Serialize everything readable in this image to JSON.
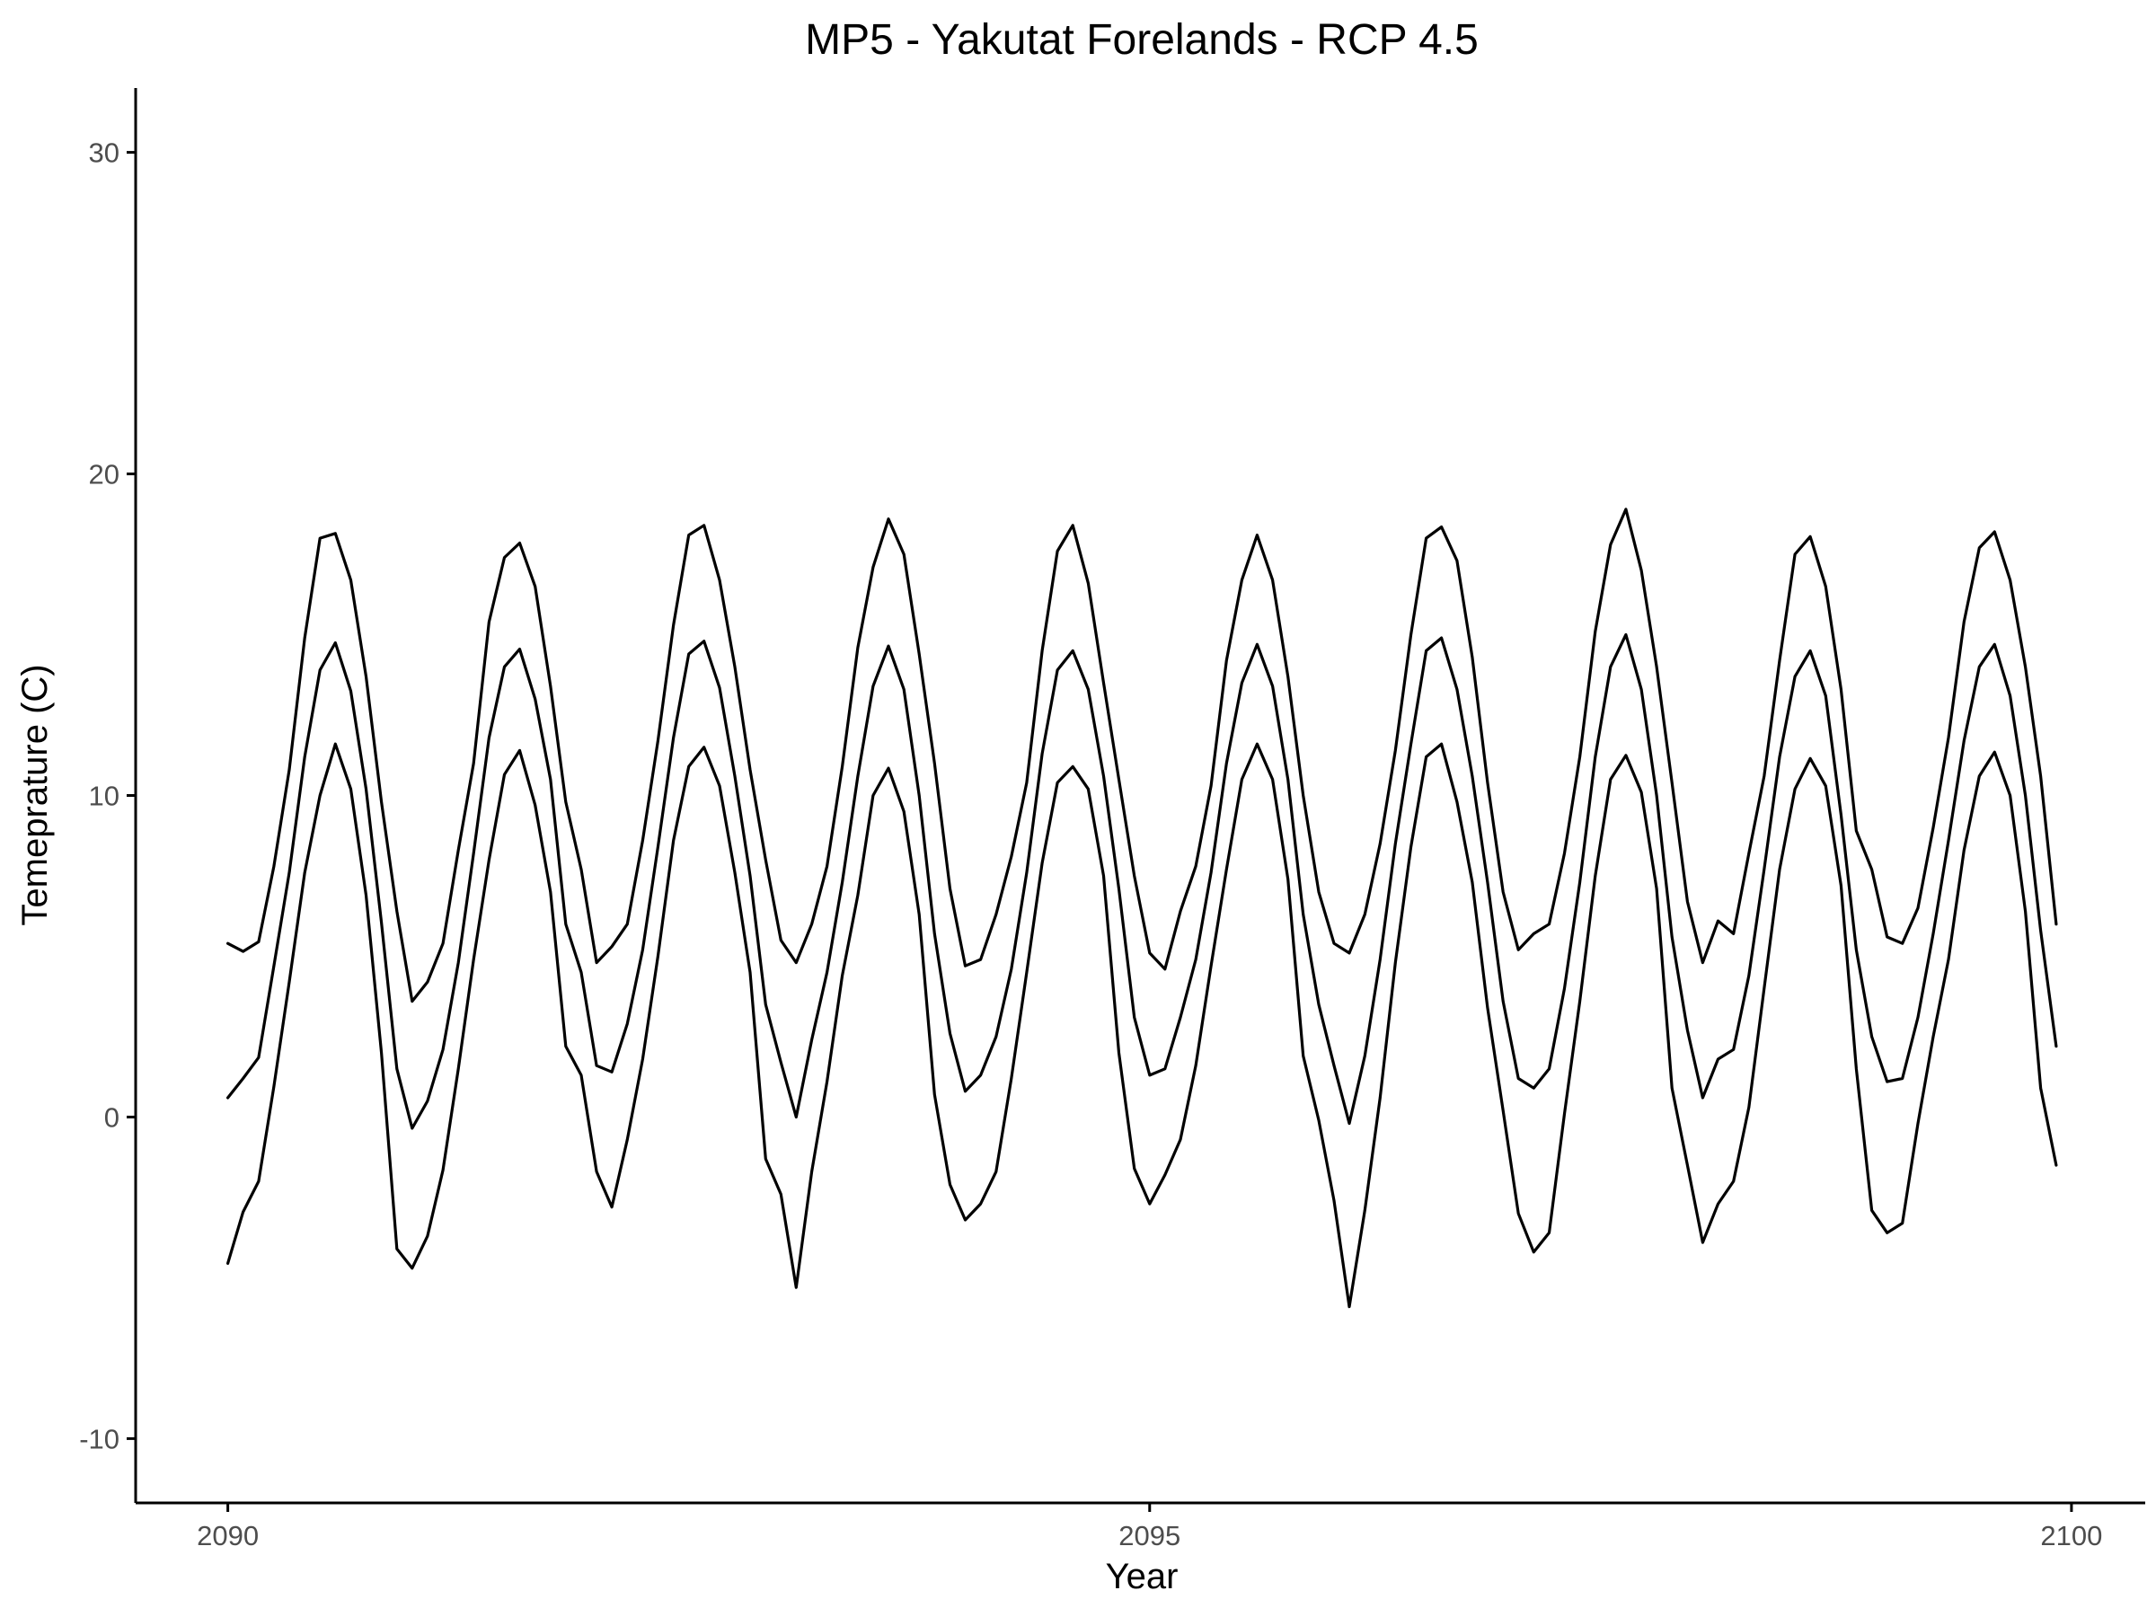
{
  "chart_data": {
    "type": "line",
    "title": "MP5 - Yakutat Forelands - RCP 4.5",
    "xlabel": "Year",
    "ylabel": "Temeprature (C)",
    "xlim": [
      2089.5,
      2100.4
    ],
    "ylim": [
      -12,
      32
    ],
    "x_ticks": [
      2090,
      2095,
      2100
    ],
    "y_ticks": [
      -10,
      0,
      10,
      20,
      30
    ],
    "grid": false,
    "legend": "none",
    "line_color": "#000000",
    "x": [
      2090.0,
      2090.083,
      2090.167,
      2090.25,
      2090.333,
      2090.417,
      2090.5,
      2090.583,
      2090.667,
      2090.75,
      2090.833,
      2090.917,
      2091.0,
      2091.083,
      2091.167,
      2091.25,
      2091.333,
      2091.417,
      2091.5,
      2091.583,
      2091.667,
      2091.75,
      2091.833,
      2091.917,
      2092.0,
      2092.083,
      2092.167,
      2092.25,
      2092.333,
      2092.417,
      2092.5,
      2092.583,
      2092.667,
      2092.75,
      2092.833,
      2092.917,
      2093.0,
      2093.083,
      2093.167,
      2093.25,
      2093.333,
      2093.417,
      2093.5,
      2093.583,
      2093.667,
      2093.75,
      2093.833,
      2093.917,
      2094.0,
      2094.083,
      2094.167,
      2094.25,
      2094.333,
      2094.417,
      2094.5,
      2094.583,
      2094.667,
      2094.75,
      2094.833,
      2094.917,
      2095.0,
      2095.083,
      2095.167,
      2095.25,
      2095.333,
      2095.417,
      2095.5,
      2095.583,
      2095.667,
      2095.75,
      2095.833,
      2095.917,
      2096.0,
      2096.083,
      2096.167,
      2096.25,
      2096.333,
      2096.417,
      2096.5,
      2096.583,
      2096.667,
      2096.75,
      2096.833,
      2096.917,
      2097.0,
      2097.083,
      2097.167,
      2097.25,
      2097.333,
      2097.417,
      2097.5,
      2097.583,
      2097.667,
      2097.75,
      2097.833,
      2097.917,
      2098.0,
      2098.083,
      2098.167,
      2098.25,
      2098.333,
      2098.417,
      2098.5,
      2098.583,
      2098.667,
      2098.75,
      2098.833,
      2098.917,
      2099.0,
      2099.083,
      2099.167,
      2099.25,
      2099.333,
      2099.417,
      2099.5,
      2099.583,
      2099.667,
      2099.75,
      2099.833,
      2099.917
    ],
    "series": [
      {
        "values": [
          5.4,
          5.15,
          5.45,
          7.8,
          10.8,
          14.9,
          18.0,
          18.15,
          16.7,
          13.7,
          9.8,
          6.4,
          3.6,
          4.2,
          5.4,
          8.3,
          11.0,
          15.4,
          17.4,
          17.85,
          16.5,
          13.4,
          9.8,
          7.7,
          4.8,
          5.3,
          6.0,
          8.6,
          11.7,
          15.3,
          18.1,
          18.4,
          16.7,
          14.0,
          10.8,
          8.0,
          5.5,
          4.8,
          6.0,
          7.8,
          10.9,
          14.6,
          17.1,
          18.6,
          17.5,
          14.4,
          11.0,
          7.1,
          4.7,
          4.9,
          6.3,
          8.1,
          10.4,
          14.5,
          17.6,
          18.4,
          16.6,
          13.5,
          10.5,
          7.5,
          5.1,
          4.6,
          6.4,
          7.8,
          10.3,
          14.2,
          16.7,
          18.1,
          16.7,
          13.7,
          10.0,
          7.0,
          5.4,
          5.1,
          6.3,
          8.5,
          11.4,
          15.0,
          18.0,
          18.35,
          17.3,
          14.3,
          10.4,
          7.0,
          5.2,
          5.7,
          6.0,
          8.2,
          11.2,
          15.1,
          17.8,
          18.9,
          17.0,
          14.0,
          10.4,
          6.7,
          4.8,
          6.1,
          5.7,
          8.2,
          10.6,
          14.2,
          17.5,
          18.05,
          16.5,
          13.3,
          8.9,
          7.7,
          5.6,
          5.4,
          6.5,
          9.0,
          11.8,
          15.4,
          17.7,
          18.2,
          16.7,
          14.0,
          10.6,
          6.0
        ]
      },
      {
        "values": [
          0.6,
          1.2,
          1.85,
          4.7,
          7.6,
          11.2,
          13.9,
          14.75,
          13.25,
          10.2,
          6.05,
          1.5,
          -0.35,
          0.5,
          2.1,
          4.8,
          8.2,
          11.8,
          14.0,
          14.55,
          13.0,
          10.5,
          6.0,
          4.5,
          1.6,
          1.4,
          2.9,
          5.2,
          8.4,
          11.8,
          14.4,
          14.8,
          13.35,
          10.6,
          7.5,
          3.5,
          1.7,
          0.0,
          2.4,
          4.5,
          7.3,
          10.6,
          13.4,
          14.65,
          13.3,
          10.0,
          5.7,
          2.6,
          0.8,
          1.3,
          2.5,
          4.6,
          7.6,
          11.3,
          13.9,
          14.5,
          13.3,
          10.6,
          7.1,
          3.1,
          1.3,
          1.5,
          3.1,
          4.9,
          7.6,
          11.0,
          13.5,
          14.7,
          13.4,
          10.5,
          6.3,
          3.5,
          1.6,
          -0.2,
          1.9,
          4.9,
          8.5,
          11.6,
          14.5,
          14.9,
          13.3,
          10.6,
          7.3,
          3.6,
          1.2,
          0.9,
          1.5,
          4.0,
          7.3,
          11.2,
          14.0,
          15.0,
          13.3,
          10.0,
          5.6,
          2.7,
          0.6,
          1.8,
          2.1,
          4.4,
          7.7,
          11.2,
          13.7,
          14.5,
          13.1,
          9.4,
          5.2,
          2.5,
          1.1,
          1.2,
          3.1,
          5.7,
          8.6,
          11.7,
          14.0,
          14.7,
          13.1,
          10.0,
          5.8,
          2.2
        ]
      },
      {
        "values": [
          -4.55,
          -2.95,
          -2.0,
          0.95,
          4.2,
          7.6,
          10.0,
          11.6,
          10.2,
          6.9,
          2.0,
          -4.1,
          -4.7,
          -3.7,
          -1.65,
          1.5,
          4.9,
          8.0,
          10.65,
          11.4,
          9.7,
          7.0,
          2.2,
          1.3,
          -1.7,
          -2.8,
          -0.7,
          1.8,
          5.0,
          8.6,
          10.9,
          11.5,
          10.3,
          7.6,
          4.5,
          -1.3,
          -2.4,
          -5.3,
          -1.7,
          1.1,
          4.4,
          6.9,
          10.0,
          10.85,
          9.5,
          6.3,
          0.7,
          -2.1,
          -3.2,
          -2.7,
          -1.7,
          1.2,
          4.5,
          7.9,
          10.4,
          10.9,
          10.2,
          7.5,
          2.0,
          -1.6,
          -2.7,
          -1.8,
          -0.7,
          1.6,
          4.7,
          7.7,
          10.5,
          11.6,
          10.5,
          7.4,
          1.9,
          -0.1,
          -2.6,
          -5.9,
          -2.9,
          0.6,
          4.8,
          8.4,
          11.2,
          11.6,
          9.8,
          7.3,
          3.4,
          0.2,
          -3.0,
          -4.2,
          -3.6,
          0.1,
          3.6,
          7.5,
          10.5,
          11.25,
          10.1,
          7.1,
          0.9,
          -1.5,
          -3.9,
          -2.7,
          -2.0,
          0.3,
          4.0,
          7.7,
          10.2,
          11.15,
          10.3,
          7.2,
          1.5,
          -2.9,
          -3.6,
          -3.3,
          -0.2,
          2.5,
          4.9,
          8.3,
          10.6,
          11.35,
          10.0,
          6.4,
          0.9,
          -1.5
        ]
      }
    ]
  }
}
